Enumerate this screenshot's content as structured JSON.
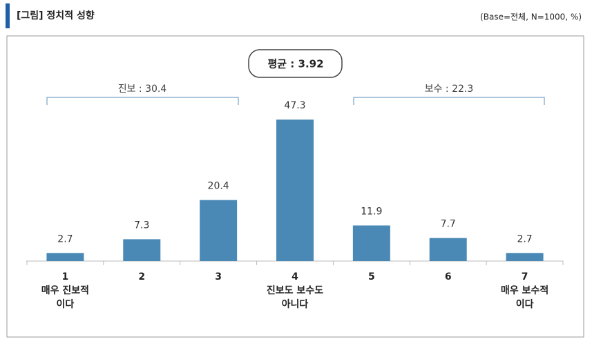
{
  "chart_data": {
    "type": "bar",
    "title": "[그림] 정치적 성향",
    "subtitle": "(Base=전체, N=1000, %)",
    "mean_label": "평균 : 3.92",
    "group_labels": [
      "진보 : 30.4",
      "보수 : 22.3"
    ],
    "categories": [
      "1",
      "2",
      "3",
      "4",
      "5",
      "6",
      "7"
    ],
    "category_descriptions": [
      [
        "매우 진보적",
        "이다"
      ],
      null,
      null,
      [
        "진보도 보수도",
        "아니다"
      ],
      null,
      null,
      [
        "매우 보수적",
        "이다"
      ]
    ],
    "values": [
      2.7,
      7.3,
      20.4,
      47.3,
      11.9,
      7.7,
      2.7
    ],
    "color": "#4a89b5"
  }
}
